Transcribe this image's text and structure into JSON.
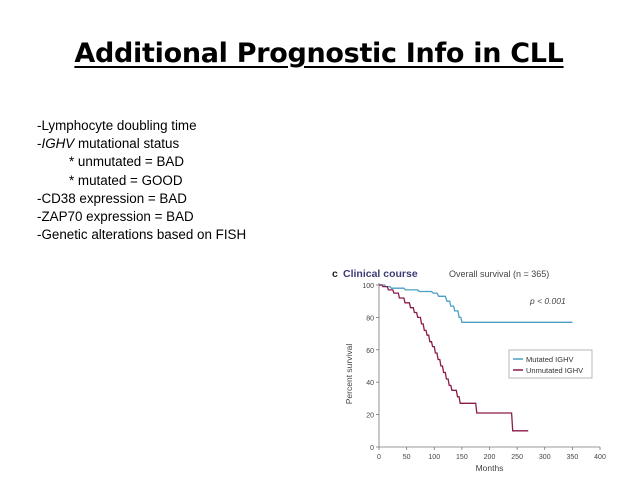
{
  "slide": {
    "title": "Additional Prognostic Info in CLL",
    "bullets": [
      {
        "prefix": "-Lymphocyte doubling time",
        "italic": "",
        "suffix": "",
        "indent": false
      },
      {
        "prefix": "-",
        "italic": "IGHV",
        "suffix": " mutational status",
        "indent": false
      },
      {
        "prefix": "* unmutated = BAD",
        "italic": "",
        "suffix": "",
        "indent": true
      },
      {
        "prefix": "* mutated = GOOD",
        "italic": "",
        "suffix": "",
        "indent": true
      },
      {
        "prefix": "-CD38 expression = BAD",
        "italic": "",
        "suffix": "",
        "indent": false
      },
      {
        "prefix": "-ZAP70 expression = BAD",
        "italic": "",
        "suffix": "",
        "indent": false
      },
      {
        "prefix": "-Genetic alterations based on FISH",
        "italic": "",
        "suffix": "",
        "indent": false
      }
    ]
  },
  "chart_data": {
    "type": "line",
    "panel_letter": "c",
    "title": "Clinical course",
    "subtitle": "Overall survival (n = 365)",
    "annotation": "p < 0.001",
    "xlabel": "Months",
    "ylabel": "Percent survival",
    "xlim": [
      0,
      400
    ],
    "ylim": [
      0,
      100
    ],
    "xticks": [
      0,
      50,
      100,
      150,
      200,
      250,
      300,
      350,
      400
    ],
    "yticks": [
      0,
      20,
      40,
      60,
      80,
      100
    ],
    "legend_position": "right",
    "series": [
      {
        "name": "Mutated IGHV",
        "color": "#4a9ec4",
        "points": [
          [
            0,
            100
          ],
          [
            10,
            100
          ],
          [
            12,
            99
          ],
          [
            20,
            99
          ],
          [
            22,
            98
          ],
          [
            45,
            98
          ],
          [
            48,
            97
          ],
          [
            70,
            97
          ],
          [
            73,
            96
          ],
          [
            95,
            96
          ],
          [
            98,
            95
          ],
          [
            105,
            95
          ],
          [
            108,
            93
          ],
          [
            120,
            93
          ],
          [
            123,
            90
          ],
          [
            128,
            90
          ],
          [
            130,
            87
          ],
          [
            135,
            87
          ],
          [
            137,
            84
          ],
          [
            143,
            84
          ],
          [
            145,
            80
          ],
          [
            148,
            80
          ],
          [
            150,
            77
          ],
          [
            350,
            77
          ]
        ]
      },
      {
        "name": "Unmutated IGHV",
        "color": "#8b1a4a",
        "points": [
          [
            0,
            100
          ],
          [
            5,
            100
          ],
          [
            7,
            99
          ],
          [
            15,
            99
          ],
          [
            17,
            97
          ],
          [
            25,
            97
          ],
          [
            27,
            95
          ],
          [
            35,
            95
          ],
          [
            37,
            92
          ],
          [
            45,
            92
          ],
          [
            47,
            89
          ],
          [
            55,
            89
          ],
          [
            57,
            86
          ],
          [
            62,
            86
          ],
          [
            64,
            83
          ],
          [
            68,
            83
          ],
          [
            70,
            80
          ],
          [
            75,
            80
          ],
          [
            77,
            76
          ],
          [
            80,
            76
          ],
          [
            82,
            72
          ],
          [
            85,
            72
          ],
          [
            87,
            69
          ],
          [
            90,
            69
          ],
          [
            92,
            65
          ],
          [
            95,
            65
          ],
          [
            97,
            62
          ],
          [
            100,
            62
          ],
          [
            102,
            58
          ],
          [
            105,
            58
          ],
          [
            107,
            54
          ],
          [
            110,
            54
          ],
          [
            112,
            50
          ],
          [
            115,
            50
          ],
          [
            117,
            46
          ],
          [
            120,
            46
          ],
          [
            122,
            42
          ],
          [
            125,
            42
          ],
          [
            127,
            38
          ],
          [
            130,
            38
          ],
          [
            132,
            35
          ],
          [
            140,
            35
          ],
          [
            142,
            31
          ],
          [
            145,
            31
          ],
          [
            147,
            27
          ],
          [
            175,
            27
          ],
          [
            177,
            21
          ],
          [
            240,
            21
          ],
          [
            242,
            10
          ],
          [
            270,
            10
          ]
        ]
      }
    ]
  }
}
